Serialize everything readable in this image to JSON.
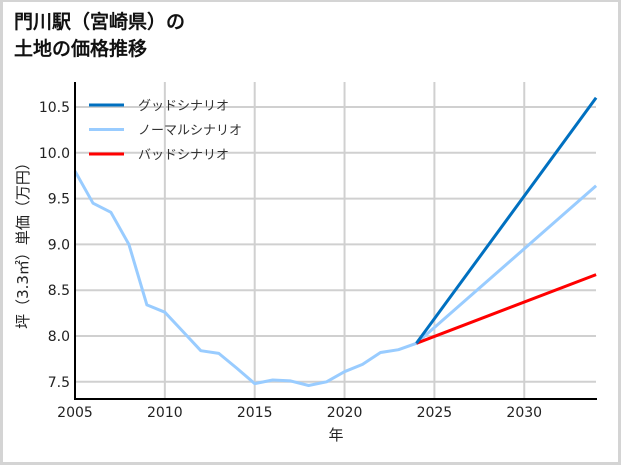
{
  "title": {
    "line1": "門川駅（宮崎県）の",
    "line2": "土地の価格推移"
  },
  "chart_data": {
    "type": "line",
    "title": "門川駅（宮崎県）の土地の価格推移",
    "xlabel": "年",
    "ylabel": "坪（3.3㎡）単価（万円）",
    "xlim": [
      2005,
      2034
    ],
    "ylim": [
      7.3,
      10.75
    ],
    "x_ticks": [
      "2005",
      "2010",
      "2015",
      "2020",
      "2025",
      "2030"
    ],
    "y_ticks": [
      "7.5",
      "8.0",
      "8.5",
      "9.0",
      "9.5",
      "10.0",
      "10.5"
    ],
    "grid": true,
    "legend_position": "upper left",
    "series": [
      {
        "name": "グッドシナリオ",
        "color": "#0070c0",
        "x": [
          2024,
          2034
        ],
        "values": [
          7.92,
          10.6
        ]
      },
      {
        "name": "ノーマルシナリオ",
        "color": "#99ccff",
        "x": [
          2005,
          2006,
          2007,
          2008,
          2009,
          2010,
          2011,
          2012,
          2013,
          2014,
          2015,
          2016,
          2017,
          2018,
          2019,
          2020,
          2021,
          2022,
          2023,
          2024,
          2034
        ],
        "values": [
          9.8,
          9.45,
          9.35,
          9.0,
          8.34,
          8.26,
          8.05,
          7.84,
          7.81,
          7.65,
          7.48,
          7.52,
          7.51,
          7.46,
          7.5,
          7.61,
          7.69,
          7.82,
          7.85,
          7.92,
          9.64
        ]
      },
      {
        "name": "バッドシナリオ",
        "color": "#ff0000",
        "x": [
          2024,
          2034
        ],
        "values": [
          7.92,
          8.67
        ]
      }
    ]
  }
}
